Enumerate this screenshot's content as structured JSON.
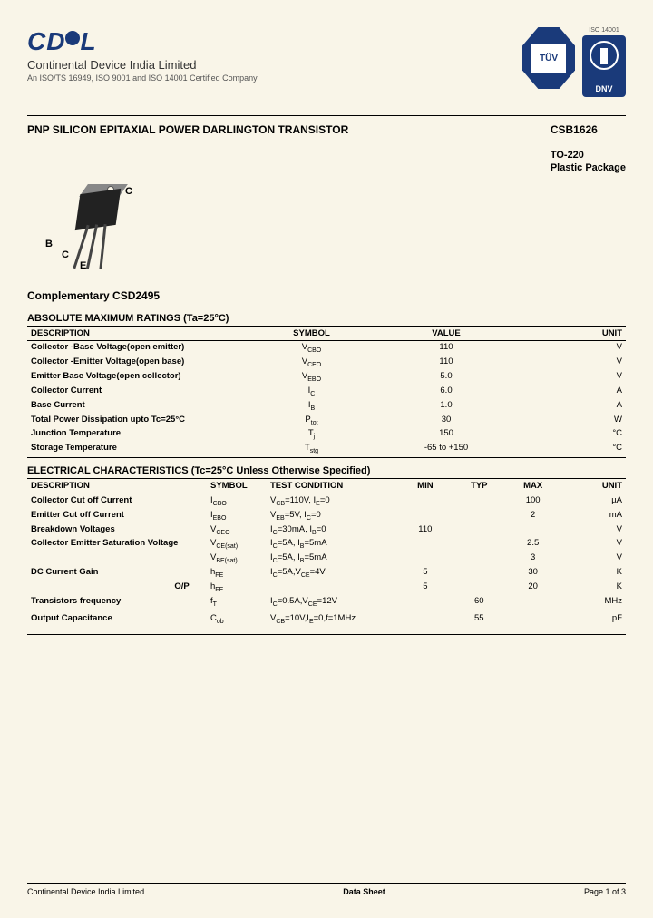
{
  "header": {
    "logo": "CD L",
    "company": "Continental Device India Limited",
    "cert": "An ISO/TS 16949, ISO 9001 and ISO 14001 Certified Company",
    "iso_badge_label": "ISO 14001",
    "tuv_text": "TÜV",
    "dnv_text": "DNV"
  },
  "title": "PNP SILICON EPITAXIAL POWER DARLINGTON TRANSISTOR",
  "part": {
    "number": "CSB1626",
    "package1": "TO-220",
    "package2": "Plastic Package"
  },
  "pins": {
    "b": "B",
    "c": "C",
    "e": "E",
    "ctop": "C"
  },
  "complementary": "Complementary CSD2495",
  "amr": {
    "title": "ABSOLUTE MAXIMUM RATINGS (Ta=25°C)",
    "headers": [
      "DESCRIPTION",
      "SYMBOL",
      "VALUE",
      "UNIT"
    ],
    "rows": [
      [
        "Collector -Base Voltage(open emitter)",
        "V<CBO>",
        "110",
        "V"
      ],
      [
        "Collector -Emitter Voltage(open base)",
        "V<CEO>",
        "110",
        "V"
      ],
      [
        "Emitter Base Voltage(open collector)",
        "V<EBO>",
        "5.0",
        "V"
      ],
      [
        "Collector Current",
        "I<C>",
        "6.0",
        "A"
      ],
      [
        "Base Current",
        "I<B>",
        "1.0",
        "A"
      ],
      [
        "Total Power Dissipation upto Tc=25°C",
        "P<tot>",
        "30",
        "W"
      ],
      [
        "Junction Temperature",
        "T<j>",
        "150",
        "°C"
      ],
      [
        "Storage Temperature",
        "T<stg>",
        "-65 to +150",
        "°C"
      ]
    ]
  },
  "ec": {
    "title": "ELECTRICAL CHARACTERISTICS (Tc=25°C Unless Otherwise Specified)",
    "headers": [
      "DESCRIPTION",
      "SYMBOL",
      "TEST CONDITION",
      "MIN",
      "TYP",
      "MAX",
      "UNIT"
    ],
    "rows": [
      {
        "desc": "Collector Cut off Current",
        "sym": "I<CBO>",
        "cond": "V<CB>=110V, I<E>=0",
        "min": "",
        "typ": "",
        "max": "100",
        "unit": "µA",
        "bold": true
      },
      {
        "desc": "Emitter Cut off Current",
        "sym": "I<EBO>",
        "cond": "V<EB>=5V, I<C>=0",
        "min": "",
        "typ": "",
        "max": "2",
        "unit": "mA",
        "bold": true
      },
      {
        "desc": "Breakdown Voltages",
        "sym": "V<CEO>",
        "cond": "I<C>=30mA, I<B>=0",
        "min": "110",
        "typ": "",
        "max": "",
        "unit": "V",
        "bold": true
      },
      {
        "desc": "Collector Emitter Saturation Voltage",
        "sym": "V<CE(sat)>",
        "cond": "I<C>=5A, I<B>=5mA",
        "min": "",
        "typ": "",
        "max": "2.5",
        "unit": "V",
        "bold": true
      },
      {
        "desc": "",
        "sym": "V<BE(sat)>",
        "cond": "I<C>=5A, I<B>=5mA",
        "min": "",
        "typ": "",
        "max": "3",
        "unit": "V",
        "bold": false
      },
      {
        "desc": "DC Current Gain",
        "sym": "h<FE>",
        "cond": "I<C>=5A,V<CE>=4V",
        "min": "5",
        "typ": "",
        "max": "30",
        "unit": "K",
        "bold": true
      },
      {
        "desc": "                                                            O/P",
        "sym": "h<FE>",
        "cond": "",
        "min": "5",
        "typ": "",
        "max": "20",
        "unit": "K",
        "bold": true
      },
      {
        "desc": "Transistors frequency",
        "sym": "f<T>",
        "cond": "I<C>=0.5A,V<CE>=12V",
        "min": "",
        "typ": "60",
        "max": "",
        "unit": "MHz",
        "bold": true
      },
      {
        "desc": "",
        "sym": "",
        "cond": "",
        "min": "",
        "typ": "",
        "max": "",
        "unit": "",
        "bold": false
      },
      {
        "desc": "Output Capacitance",
        "sym": "C<ob>",
        "cond": "V<CB>=10V,I<E>=0,f=1MHz",
        "min": "",
        "typ": "55",
        "max": "",
        "unit": "pF",
        "bold": true
      }
    ]
  },
  "footer": {
    "left": "Continental Device India Limited",
    "center": "Data Sheet",
    "right": "Page 1 of 3"
  },
  "colors": {
    "bg": "#f9f5e8",
    "navy": "#1a3a7a",
    "text": "#000000"
  }
}
